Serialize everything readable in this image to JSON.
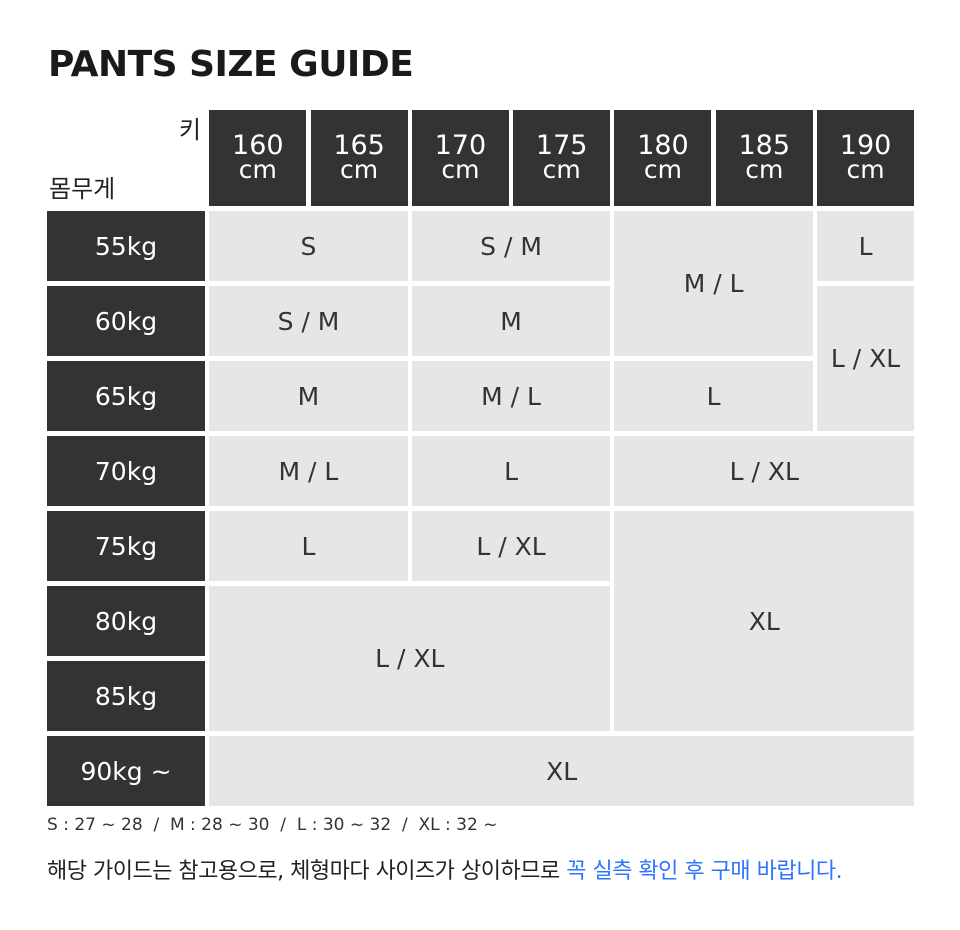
{
  "title": "PANTS SIZE GUIDE",
  "axis": {
    "height_label": "키",
    "weight_label": "몸무게"
  },
  "heights": [
    {
      "value": "160",
      "unit": "cm"
    },
    {
      "value": "165",
      "unit": "cm"
    },
    {
      "value": "170",
      "unit": "cm"
    },
    {
      "value": "175",
      "unit": "cm"
    },
    {
      "value": "180",
      "unit": "cm"
    },
    {
      "value": "185",
      "unit": "cm"
    },
    {
      "value": "190",
      "unit": "cm"
    }
  ],
  "weights": [
    "55kg",
    "60kg",
    "65kg",
    "70kg",
    "75kg",
    "80kg",
    "85kg",
    "90kg ~"
  ],
  "cells": [
    {
      "size": "S",
      "heights": [
        "160",
        "165"
      ],
      "weights": [
        "55kg"
      ]
    },
    {
      "size": "S / M",
      "heights": [
        "170",
        "175"
      ],
      "weights": [
        "55kg"
      ]
    },
    {
      "size": "M / L",
      "heights": [
        "180",
        "185"
      ],
      "weights": [
        "55kg",
        "60kg"
      ]
    },
    {
      "size": "L",
      "heights": [
        "190"
      ],
      "weights": [
        "55kg"
      ]
    },
    {
      "size": "S / M",
      "heights": [
        "160",
        "165"
      ],
      "weights": [
        "60kg"
      ]
    },
    {
      "size": "M",
      "heights": [
        "170",
        "175"
      ],
      "weights": [
        "60kg"
      ]
    },
    {
      "size": "L / XL",
      "heights": [
        "190"
      ],
      "weights": [
        "60kg",
        "65kg"
      ]
    },
    {
      "size": "M",
      "heights": [
        "160",
        "165"
      ],
      "weights": [
        "65kg"
      ]
    },
    {
      "size": "M / L",
      "heights": [
        "170",
        "175"
      ],
      "weights": [
        "65kg"
      ]
    },
    {
      "size": "L",
      "heights": [
        "180",
        "185"
      ],
      "weights": [
        "65kg"
      ]
    },
    {
      "size": "M / L",
      "heights": [
        "160",
        "165"
      ],
      "weights": [
        "70kg"
      ]
    },
    {
      "size": "L",
      "heights": [
        "170",
        "175"
      ],
      "weights": [
        "70kg"
      ]
    },
    {
      "size": "L / XL",
      "heights": [
        "180",
        "190"
      ],
      "weights": [
        "70kg"
      ]
    },
    {
      "size": "L",
      "heights": [
        "160",
        "165"
      ],
      "weights": [
        "75kg"
      ]
    },
    {
      "size": "L / XL",
      "heights": [
        "170",
        "175"
      ],
      "weights": [
        "75kg"
      ]
    },
    {
      "size": "XL",
      "heights": [
        "180",
        "190"
      ],
      "weights": [
        "75kg",
        "85kg"
      ]
    },
    {
      "size": "L / XL",
      "heights": [
        "160",
        "175"
      ],
      "weights": [
        "80kg",
        "85kg"
      ]
    },
    {
      "size": "XL",
      "heights": [
        "160",
        "190"
      ],
      "weights": [
        "90kg ~"
      ]
    }
  ],
  "notes": {
    "waist_ranges": "S : 27 ~ 28  /  M : 28 ~ 30  /  L : 30 ~ 32  /  XL : 32 ~",
    "disclaimer": "해당 가이드는 참고용으로, 체형마다 사이즈가 상이하므로 ",
    "disclaimer_highlight": "꼭 실측 확인 후 구매 바랍니다.",
    "highlight_color": "#2f74ff"
  }
}
